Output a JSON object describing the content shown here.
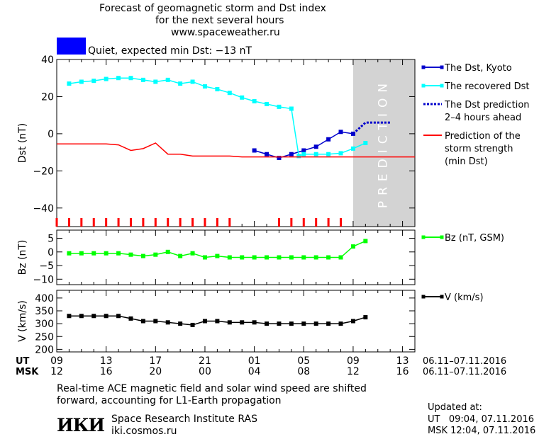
{
  "header": {
    "title_line1": "Forecast of geomagnetic storm and Dst index",
    "title_line2": "for the next several hours",
    "url": "www.spaceweather.ru",
    "status_text": "Quiet, expected min Dst: −13 nT",
    "status_color": "#0000ff"
  },
  "chart_data": [
    {
      "type": "line",
      "ylabel": "Dst (nT)",
      "ylim": [
        -50,
        40
      ],
      "yticks": [
        40,
        20,
        0,
        -20,
        -40
      ],
      "xlim": [
        0,
        29
      ],
      "prediction_band": {
        "x": [
          24,
          29
        ],
        "label": "PREDICTION",
        "color": "#d3d3d3"
      },
      "storm_marks_x": [
        0,
        1,
        2,
        3,
        4,
        5,
        6,
        7,
        8,
        9,
        10,
        11,
        12,
        13,
        14,
        18,
        19,
        20,
        21,
        22,
        23
      ],
      "series": [
        {
          "name": "The Dst, Kyoto",
          "color": "#0000cc",
          "marker": "square",
          "x": [
            16,
            17,
            18,
            19,
            20,
            21,
            22,
            23,
            24
          ],
          "y": [
            -9,
            -11,
            -13,
            -11,
            -9,
            -7,
            -3,
            1,
            0
          ]
        },
        {
          "name": "The recovered Dst",
          "color": "#00ffff",
          "marker": "square",
          "x": [
            1,
            2,
            3,
            4,
            5,
            6,
            7,
            8,
            9,
            10,
            11,
            12,
            13,
            14,
            15,
            16,
            17,
            18,
            19,
            19.6,
            20,
            21,
            22,
            23,
            24,
            25
          ],
          "y": [
            27,
            28,
            28.5,
            29.5,
            30,
            30,
            29,
            28,
            29,
            27,
            28,
            25.5,
            24,
            22,
            19.5,
            17.5,
            16,
            14.5,
            13.5,
            -12,
            -11,
            -11,
            -11,
            -10.5,
            -8,
            -5
          ]
        },
        {
          "name": "The Dst prediction",
          "name_line2": "2–4 hours ahead",
          "color": "#0000cc",
          "dash": true,
          "x": [
            24,
            25,
            26,
            27
          ],
          "y": [
            0,
            6,
            6,
            6
          ]
        },
        {
          "name": "Prediction of the",
          "name_line2": "storm strength",
          "name_line3": "(min Dst)",
          "color": "#ff0000",
          "x": [
            0,
            1,
            2,
            3,
            4,
            5,
            6,
            7,
            8,
            9,
            10,
            11,
            12,
            13,
            14,
            15,
            16,
            17,
            18,
            19,
            20,
            21,
            22,
            23,
            24,
            25,
            26,
            27,
            28,
            29
          ],
          "y": [
            -5.5,
            -5.5,
            -5.5,
            -5.5,
            -5.5,
            -6,
            -9,
            -8,
            -5,
            -11,
            -11,
            -12,
            -12,
            -12,
            -12,
            -12.5,
            -12.5,
            -12.5,
            -12.5,
            -12.5,
            -12.5,
            -12.5,
            -12.5,
            -12.5,
            -12.5,
            -12.5,
            -12.5,
            -12.5,
            -12.5,
            -12.5
          ]
        }
      ]
    },
    {
      "type": "line",
      "ylabel": "Bz (nT)",
      "ylim": [
        -12,
        8
      ],
      "yticks": [
        5,
        0,
        -5,
        -10
      ],
      "xlim": [
        0,
        29
      ],
      "series": [
        {
          "name": "Bz (nT, GSM)",
          "color": "#00ff00",
          "marker": "square",
          "x": [
            1,
            2,
            3,
            4,
            5,
            6,
            7,
            8,
            9,
            10,
            11,
            12,
            13,
            14,
            15,
            16,
            17,
            18,
            19,
            20,
            21,
            22,
            23,
            24,
            25
          ],
          "y": [
            -0.5,
            -0.5,
            -0.5,
            -0.5,
            -0.5,
            -1,
            -1.5,
            -1,
            0,
            -1.5,
            -0.5,
            -2,
            -1.5,
            -2,
            -2,
            -2,
            -2,
            -2,
            -2,
            -2,
            -2,
            -2,
            -2,
            2,
            4
          ]
        }
      ]
    },
    {
      "type": "line",
      "ylabel": "V (km/s)",
      "ylim": [
        190,
        430
      ],
      "yticks": [
        400,
        350,
        300,
        250,
        200
      ],
      "xlim": [
        0,
        29
      ],
      "series": [
        {
          "name": "V (km/s)",
          "color": "#000000",
          "marker": "square",
          "x": [
            1,
            2,
            3,
            4,
            5,
            6,
            7,
            8,
            9,
            10,
            11,
            12,
            13,
            14,
            15,
            16,
            17,
            18,
            19,
            20,
            21,
            22,
            23,
            24,
            25
          ],
          "y": [
            330,
            330,
            330,
            330,
            330,
            320,
            310,
            310,
            305,
            300,
            295,
            310,
            310,
            305,
            305,
            305,
            300,
            300,
            300,
            300,
            300,
            300,
            300,
            310,
            325
          ]
        }
      ]
    }
  ],
  "xaxis": {
    "ut_label": "UT",
    "msk_label": "MSK",
    "ut_ticks": [
      "09",
      "13",
      "17",
      "21",
      "01",
      "05",
      "09",
      "13"
    ],
    "msk_ticks": [
      "12",
      "16",
      "20",
      "00",
      "04",
      "08",
      "12",
      "16"
    ],
    "tick_x": [
      0,
      4,
      8,
      12,
      16,
      20,
      24,
      28
    ],
    "date_range_ut": "06.11–07.11.2016",
    "date_range_msk": "06.11–07.11.2016"
  },
  "footer": {
    "note_line1": "Real-time ACE magnetic field and solar wind speed are shifted",
    "note_line2": "forward, accounting for L1-Earth propagation",
    "logo_text": "ИКИ",
    "institute": "Space Research Institute RAS",
    "site": "iki.cosmos.ru",
    "updated_label": "Updated at:",
    "updated_ut": "UT   09:04, 07.11.2016",
    "updated_msk": "MSK 12:04, 07.11.2016"
  }
}
